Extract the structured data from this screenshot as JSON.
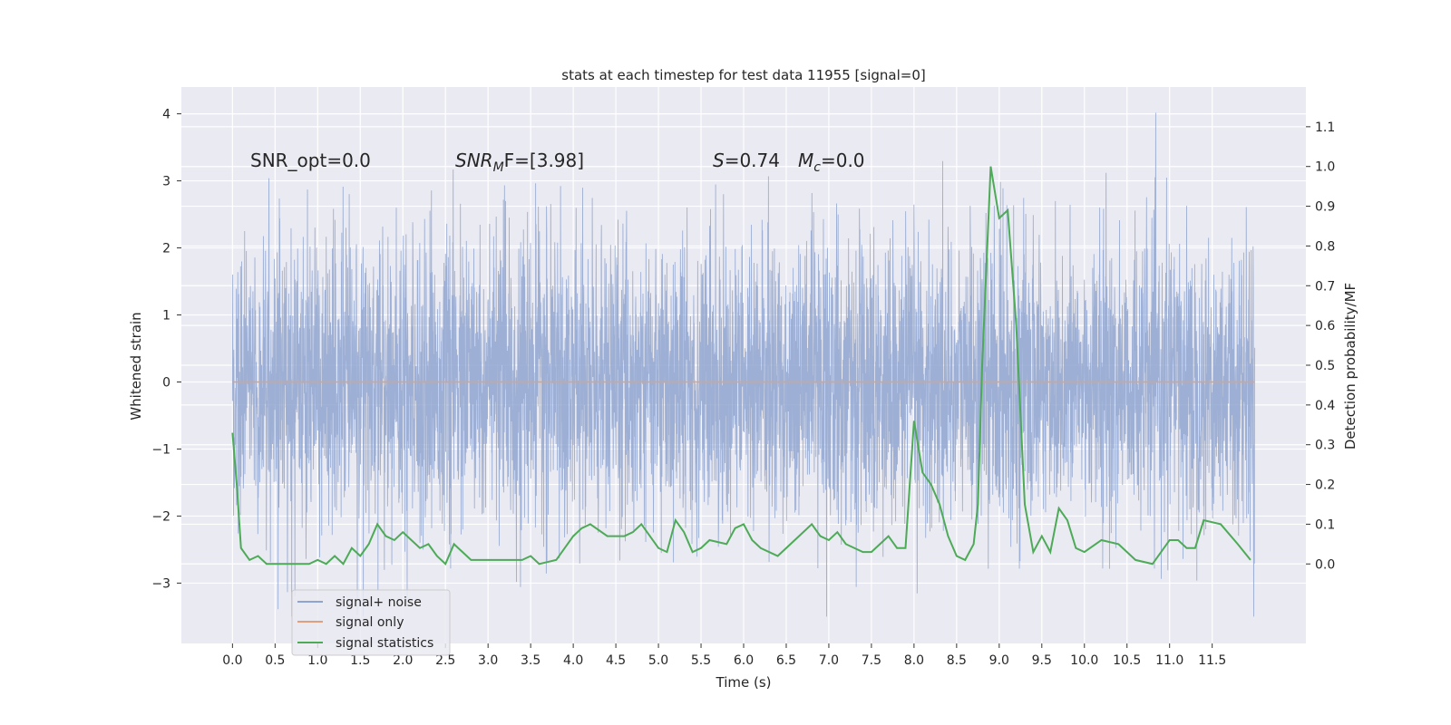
{
  "chart_data": {
    "type": "line",
    "title": "stats at each timestep for test data 11955 [signal=0]",
    "xlabel": "Time (s)",
    "ylabel_left": "Whitened strain",
    "ylabel_right": "Detection probability/MF",
    "xlim": [
      -0.6,
      12.6
    ],
    "ylim_left": [
      -3.9,
      4.4
    ],
    "ylim_right": [
      -0.2,
      1.2
    ],
    "xticks": [
      "0.0",
      "0.5",
      "1.0",
      "1.5",
      "2.0",
      "2.5",
      "3.0",
      "3.5",
      "4.0",
      "4.5",
      "5.0",
      "5.5",
      "6.0",
      "6.5",
      "7.0",
      "7.5",
      "8.0",
      "8.5",
      "9.0",
      "9.5",
      "10.0",
      "10.5",
      "11.0",
      "11.5"
    ],
    "yticks_left": [
      "−3",
      "−2",
      "−1",
      "0",
      "1",
      "2",
      "3",
      "4"
    ],
    "yticks_right": [
      "0.0",
      "0.1",
      "0.2",
      "0.3",
      "0.4",
      "0.5",
      "0.6",
      "0.7",
      "0.8",
      "0.9",
      "1.0",
      "1.1"
    ],
    "grid": true,
    "legend_position": "lower-left",
    "annotations": {
      "snr_opt": "SNR_opt=0.0",
      "snr_mf_main": "SNR",
      "snr_mf_sub": "M",
      "snr_mf_rest": "F=[3.98]",
      "s_main": "S",
      "s_rest": "=0.74",
      "mc_main": "M",
      "mc_sub": "c",
      "mc_rest": "=0.0"
    },
    "series": [
      {
        "name": "signal+ noise",
        "axis": "left",
        "color": "#8fa5cf",
        "description_values": "whitened noise, approx. Gaussian, range about -3.5 to 4.1, 12 s",
        "range": [
          -3.5,
          4.1
        ]
      },
      {
        "name": "signal only",
        "axis": "left",
        "color": "#e0a080",
        "x": [
          0.0,
          12.0
        ],
        "y": [
          0.0,
          0.0
        ]
      },
      {
        "name": "signal statistics",
        "axis": "right",
        "color": "#4daa57",
        "x": [
          0.0,
          0.05,
          0.1,
          0.2,
          0.3,
          0.4,
          0.5,
          0.6,
          0.7,
          0.8,
          0.9,
          1.0,
          1.1,
          1.2,
          1.3,
          1.4,
          1.5,
          1.6,
          1.7,
          1.8,
          1.9,
          2.0,
          2.1,
          2.2,
          2.3,
          2.4,
          2.5,
          2.6,
          2.7,
          2.8,
          2.9,
          3.0,
          3.2,
          3.4,
          3.5,
          3.6,
          3.8,
          4.0,
          4.1,
          4.2,
          4.4,
          4.6,
          4.7,
          4.8,
          4.9,
          5.0,
          5.1,
          5.2,
          5.3,
          5.4,
          5.5,
          5.6,
          5.8,
          5.9,
          6.0,
          6.1,
          6.2,
          6.4,
          6.6,
          6.8,
          6.9,
          7.0,
          7.1,
          7.2,
          7.3,
          7.4,
          7.5,
          7.6,
          7.7,
          7.8,
          7.9,
          8.0,
          8.1,
          8.2,
          8.3,
          8.4,
          8.5,
          8.6,
          8.7,
          8.75,
          8.8,
          8.9,
          9.0,
          9.1,
          9.2,
          9.3,
          9.4,
          9.5,
          9.6,
          9.7,
          9.8,
          9.9,
          10.0,
          10.2,
          10.4,
          10.6,
          10.8,
          11.0,
          11.1,
          11.2,
          11.3,
          11.4,
          11.6,
          11.8,
          11.95
        ],
        "y": [
          0.33,
          0.2,
          0.04,
          0.01,
          0.02,
          0.0,
          0.0,
          0.0,
          0.0,
          0.0,
          0.0,
          0.01,
          0.0,
          0.02,
          0.0,
          0.04,
          0.02,
          0.05,
          0.1,
          0.07,
          0.06,
          0.08,
          0.06,
          0.04,
          0.05,
          0.02,
          0.0,
          0.05,
          0.03,
          0.01,
          0.01,
          0.01,
          0.01,
          0.01,
          0.02,
          0.0,
          0.01,
          0.07,
          0.09,
          0.1,
          0.07,
          0.07,
          0.08,
          0.1,
          0.07,
          0.04,
          0.03,
          0.11,
          0.08,
          0.03,
          0.04,
          0.06,
          0.05,
          0.09,
          0.1,
          0.06,
          0.04,
          0.02,
          0.06,
          0.1,
          0.07,
          0.06,
          0.08,
          0.05,
          0.04,
          0.03,
          0.03,
          0.05,
          0.07,
          0.04,
          0.04,
          0.36,
          0.23,
          0.2,
          0.15,
          0.07,
          0.02,
          0.01,
          0.05,
          0.15,
          0.5,
          1.0,
          0.87,
          0.89,
          0.6,
          0.15,
          0.03,
          0.07,
          0.03,
          0.14,
          0.11,
          0.04,
          0.03,
          0.06,
          0.05,
          0.01,
          0.0,
          0.06,
          0.06,
          0.04,
          0.04,
          0.11,
          0.1,
          0.05,
          0.01
        ]
      }
    ]
  }
}
